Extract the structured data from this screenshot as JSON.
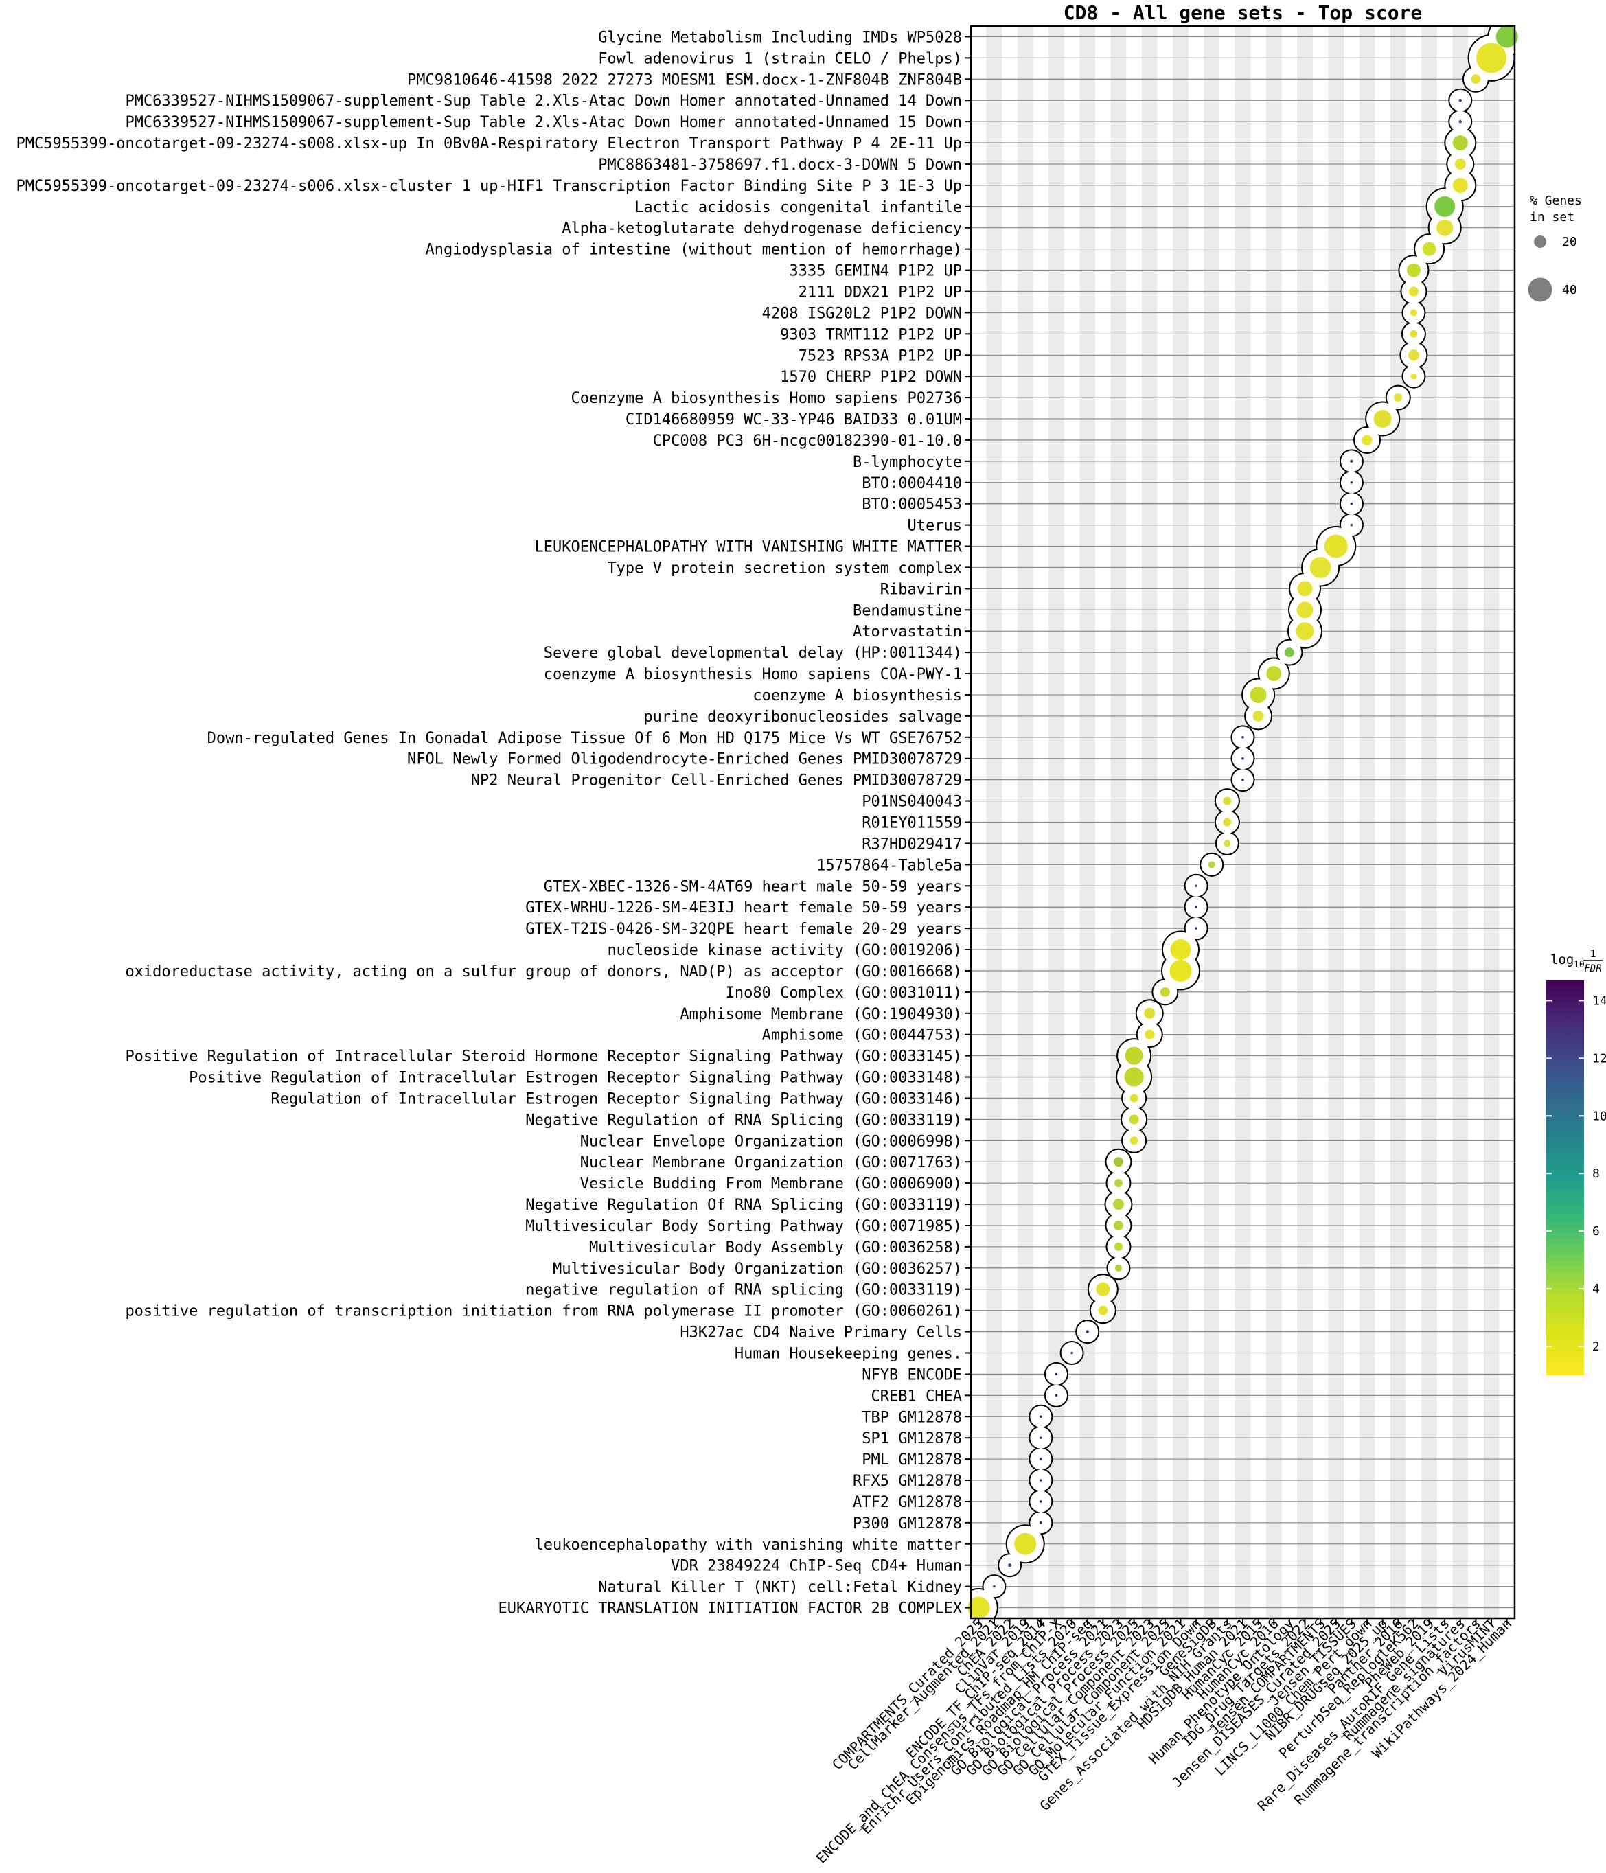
{
  "title": "CD8 - All gene sets - Top score",
  "legend": {
    "title_line1": "% Genes",
    "title_line2": "in set",
    "sizes": [
      20,
      40
    ],
    "circle_color": "#7f7f7f"
  },
  "colorbar": {
    "title_log": "log",
    "title_sub": "10",
    "frac_num": "1",
    "frac_den": "FDR",
    "ticks": [
      14,
      12,
      10,
      8,
      6,
      4,
      2
    ],
    "vmin": 1.0,
    "vmax": 14.7
  },
  "style_colors": {
    "stripe": "#ebebeb",
    "gridline": "#8f8f8f",
    "snake_fill": "#ffffff",
    "snake_stroke": "#000000"
  },
  "chart_data": {
    "type": "scatter",
    "x_axis": "gene set library",
    "y_axis": "gene set (top score per library)",
    "size_encoding": "% Genes in set",
    "color_encoding": "log10 1/FDR (viridis)",
    "x_categories": [
      "COMPARTMENTS_Curated_2025",
      "CellMarker_Augmented_2021",
      "ChEA_2022",
      "ClinVar_2019",
      "ENCODE_TF_ChIP-seq_2014",
      "ENCODE_and_ChEA_Consensus_TFs_from_ChIP-X",
      "Enrichr_Users_Contributed_Lists_2020",
      "Epigenomics_Roadmap_HM_ChIP-seq",
      "GO_Biological_Process_2021",
      "GO_Biological_Process_2023",
      "GO_Biological_Process_2025",
      "GO_Cellular_Component_2023",
      "GO_Cellular_Component_2025",
      "GO_Molecular_Function_2021",
      "GTEX_Tissue_Expression_Down",
      "GeneSigDB",
      "Genes_Associated_with_NIH_Grants",
      "HDSigDB_Human_2021",
      "HumanCyc_2015",
      "HumanCyc_2016",
      "Human_Phenotype_Ontology",
      "IDG_Drug_Targets_2022",
      "Jensen_COMPARTMENTS",
      "Jensen_DISEASES_Curated_2025",
      "Jensen_TISSUES",
      "LINCS_L1000_Chem_Pert_down",
      "NIBR_DRUGseq_2025_up",
      "Panther_2016",
      "PerturbSeq_ReplogleK562",
      "PheWeb_2019",
      "Rare_Diseases_AutoRIF_Gene_Lists",
      "Rummagene_signatures",
      "Rummagene_transcription_factors",
      "VirusMINT",
      "WikiPathways_2024_Human"
    ],
    "rows": [
      {
        "label": "Glycine Metabolism Including IMDs WP5028",
        "library": "WikiPathways_2024_Human",
        "col": 35,
        "pct_genes": 36,
        "log10_inv_fdr": 4.5,
        "r": 16,
        "color": "#82ca3e"
      },
      {
        "label": "Fowl adenovirus 1 (strain CELO / Phelps)",
        "library": "VirusMINT",
        "col": 34,
        "pct_genes": 50,
        "log10_inv_fdr": 1.5,
        "r": 22,
        "color": "#e8e42c"
      },
      {
        "label": "PMC9810646-41598 2022 27273 MOESM1 ESM.docx-1-ZNF804B ZNF804B",
        "library": "Rummagene_transcription_factors",
        "col": 33,
        "pct_genes": 16,
        "log10_inv_fdr": 1.8,
        "r": 7,
        "color": "#e3e233"
      },
      {
        "label": "PMC6339527-NIHMS1509067-supplement-Sup Table 2.Xls-Atac Down Homer annotated-Unnamed 14 Down",
        "library": "Rummagene_signatures",
        "col": 32,
        "pct_genes": 5,
        "log10_inv_fdr": 10,
        "r": 2.2,
        "color": "#2d4b8e"
      },
      {
        "label": "PMC6339527-NIHMS1509067-supplement-Sup Table 2.Xls-Atac Down Homer annotated-Unnamed 15 Down",
        "library": "Rummagene_signatures",
        "col": 32,
        "pct_genes": 5,
        "log10_inv_fdr": 10,
        "r": 2.2,
        "color": "#2d4b8e"
      },
      {
        "label": "PMC5955399-oncotarget-09-23274-s008.xlsx-up In 0Bv0A-Respiratory Electron Transport Pathway P 4 2E-11 Up",
        "library": "Rummagene_signatures",
        "col": 32,
        "pct_genes": 25,
        "log10_inv_fdr": 3.0,
        "r": 11,
        "color": "#b2d435"
      },
      {
        "label": "PMC8863481-3758697.f1.docx-3-DOWN 5 Down",
        "library": "Rummagene_signatures",
        "col": 32,
        "pct_genes": 18,
        "log10_inv_fdr": 1.8,
        "r": 8,
        "color": "#e6e332"
      },
      {
        "label": "PMC5955399-oncotarget-09-23274-s006.xlsx-cluster 1 up-HIF1 Transcription Factor Binding Site P 3 1E-3 Up",
        "library": "Rummagene_signatures",
        "col": 32,
        "pct_genes": 25,
        "log10_inv_fdr": 1.6,
        "r": 11,
        "color": "#e8e32e"
      },
      {
        "label": "Lactic acidosis congenital infantile",
        "library": "Rare_Diseases_AutoRIF_Gene_Lists",
        "col": 31,
        "pct_genes": 34,
        "log10_inv_fdr": 4.5,
        "r": 15,
        "color": "#7ec944"
      },
      {
        "label": "Alpha-ketoglutarate dehydrogenase deficiency",
        "library": "Rare_Diseases_AutoRIF_Gene_Lists",
        "col": 31,
        "pct_genes": 27,
        "log10_inv_fdr": 1.7,
        "r": 12,
        "color": "#e6e133"
      },
      {
        "label": "Angiodysplasia of intestine (without mention of hemorrhage)",
        "library": "PheWeb_2019",
        "col": 30,
        "pct_genes": 23,
        "log10_inv_fdr": 2.2,
        "r": 10,
        "color": "#d4de2e"
      },
      {
        "label": "3335 GEMIN4 P1P2 UP",
        "library": "PerturbSeq_ReplogleK562",
        "col": 29,
        "pct_genes": 23,
        "log10_inv_fdr": 2.6,
        "r": 10,
        "color": "#c6da30"
      },
      {
        "label": "2111 DDX21 P1P2 UP",
        "library": "PerturbSeq_ReplogleK562",
        "col": 29,
        "pct_genes": 16,
        "log10_inv_fdr": 1.7,
        "r": 7,
        "color": "#e6e232"
      },
      {
        "label": "4208 ISG20L2 P1P2 DOWN",
        "library": "PerturbSeq_ReplogleK562",
        "col": 29,
        "pct_genes": 11,
        "log10_inv_fdr": 1.6,
        "r": 5,
        "color": "#e8e430"
      },
      {
        "label": "9303 TRMT112 P1P2 UP",
        "library": "PerturbSeq_ReplogleK562",
        "col": 29,
        "pct_genes": 13,
        "log10_inv_fdr": 1.7,
        "r": 5.5,
        "color": "#e6e232"
      },
      {
        "label": "7523 RPS3A P1P2 UP",
        "library": "PerturbSeq_ReplogleK562",
        "col": 29,
        "pct_genes": 18,
        "log10_inv_fdr": 1.8,
        "r": 8,
        "color": "#e4e134"
      },
      {
        "label": "1570 CHERP P1P2 DOWN",
        "library": "PerturbSeq_ReplogleK562",
        "col": 29,
        "pct_genes": 10,
        "log10_inv_fdr": 1.5,
        "r": 4.5,
        "color": "#eae637"
      },
      {
        "label": "Coenzyme A biosynthesis Homo sapiens P02736",
        "library": "Panther_2016",
        "col": 28,
        "pct_genes": 14,
        "log10_inv_fdr": 1.7,
        "r": 6,
        "color": "#e6e233"
      },
      {
        "label": "CID146680959 WC-33-YP46 BAID33 0.01UM",
        "library": "NIBR_DRUGseq_2025_up",
        "col": 27,
        "pct_genes": 30,
        "log10_inv_fdr": 1.9,
        "r": 13,
        "color": "#e2e02f"
      },
      {
        "label": "CPC008 PC3 6H-ncgc00182390-01-10.0",
        "library": "LINCS_L1000_Chem_Pert_down",
        "col": 26,
        "pct_genes": 17,
        "log10_inv_fdr": 1.6,
        "r": 7.5,
        "color": "#e8e531"
      },
      {
        "label": "B-lymphocyte",
        "library": "Jensen_TISSUES",
        "col": 25,
        "pct_genes": 5,
        "log10_inv_fdr": 12,
        "r": 2.2,
        "color": "#542a84"
      },
      {
        "label": "BTO:0004410",
        "library": "Jensen_TISSUES",
        "col": 25,
        "pct_genes": 4,
        "log10_inv_fdr": 12,
        "r": 1.8,
        "color": "#542a84"
      },
      {
        "label": "BTO:0005453",
        "library": "Jensen_TISSUES",
        "col": 25,
        "pct_genes": 4,
        "log10_inv_fdr": 12,
        "r": 1.8,
        "color": "#542a84"
      },
      {
        "label": "Uterus",
        "library": "Jensen_TISSUES",
        "col": 25,
        "pct_genes": 4,
        "log10_inv_fdr": 12,
        "r": 1.8,
        "color": "#542a84"
      },
      {
        "label": "LEUKOENCEPHALOPATHY WITH VANISHING WHITE MATTER",
        "library": "Jensen_DISEASES_Curated_2025",
        "col": 24,
        "pct_genes": 39,
        "log10_inv_fdr": 1.8,
        "r": 17,
        "color": "#e5e22e"
      },
      {
        "label": "Type V protein secretion system complex",
        "library": "Jensen_COMPARTMENTS",
        "col": 23,
        "pct_genes": 35,
        "log10_inv_fdr": 1.6,
        "r": 15.5,
        "color": "#e6e430"
      },
      {
        "label": "Ribavirin",
        "library": "IDG_Drug_Targets_2022",
        "col": 22,
        "pct_genes": 25,
        "log10_inv_fdr": 1.8,
        "r": 11,
        "color": "#e5e231"
      },
      {
        "label": "Bendamustine",
        "library": "IDG_Drug_Targets_2022",
        "col": 22,
        "pct_genes": 27,
        "log10_inv_fdr": 1.8,
        "r": 12,
        "color": "#e5e231"
      },
      {
        "label": "Atorvastatin",
        "library": "IDG_Drug_Targets_2022",
        "col": 22,
        "pct_genes": 30,
        "log10_inv_fdr": 1.8,
        "r": 13,
        "color": "#e5e231"
      },
      {
        "label": "Severe global developmental delay (HP:0011344)",
        "library": "Human_Phenotype_Ontology",
        "col": 21,
        "pct_genes": 16,
        "log10_inv_fdr": 4.6,
        "r": 7,
        "color": "#7cc943"
      },
      {
        "label": "coenzyme A biosynthesis Homo sapiens COA-PWY-1",
        "library": "HumanCyc_2016",
        "col": 20,
        "pct_genes": 25,
        "log10_inv_fdr": 2.6,
        "r": 11,
        "color": "#c6da2e"
      },
      {
        "label": "coenzyme A biosynthesis",
        "library": "HumanCyc_2015",
        "col": 19,
        "pct_genes": 27,
        "log10_inv_fdr": 2.5,
        "r": 12,
        "color": "#c9dc2c"
      },
      {
        "label": "purine deoxyribonucleosides salvage",
        "library": "HumanCyc_2015",
        "col": 19,
        "pct_genes": 18,
        "log10_inv_fdr": 1.9,
        "r": 8,
        "color": "#e2e135"
      },
      {
        "label": "Down-regulated Genes In Gonadal Adipose Tissue Of 6 Mon HD Q175 Mice Vs WT GSE76752",
        "library": "HDSigDB_Human_2021",
        "col": 18,
        "pct_genes": 4,
        "log10_inv_fdr": 12.5,
        "r": 1.8,
        "color": "#4b2586"
      },
      {
        "label": "NFOL Newly Formed Oligodendrocyte-Enriched Genes PMID30078729",
        "library": "HDSigDB_Human_2021",
        "col": 18,
        "pct_genes": 4,
        "log10_inv_fdr": 12.5,
        "r": 1.8,
        "color": "#4b2586"
      },
      {
        "label": "NP2 Neural Progenitor Cell-Enriched Genes PMID30078729",
        "library": "HDSigDB_Human_2021",
        "col": 18,
        "pct_genes": 4,
        "log10_inv_fdr": 12.5,
        "r": 1.8,
        "color": "#4b2586"
      },
      {
        "label": "P01NS040043",
        "library": "Genes_Associated_with_NIH_Grants",
        "col": 17,
        "pct_genes": 14,
        "log10_inv_fdr": 2.0,
        "r": 6,
        "color": "#e0df31"
      },
      {
        "label": "R01EY011559",
        "library": "Genes_Associated_with_NIH_Grants",
        "col": 17,
        "pct_genes": 14,
        "log10_inv_fdr": 2.0,
        "r": 6,
        "color": "#e0df31"
      },
      {
        "label": "R37HD029417",
        "library": "Genes_Associated_with_NIH_Grants",
        "col": 17,
        "pct_genes": 11,
        "log10_inv_fdr": 2.0,
        "r": 5,
        "color": "#e0df31"
      },
      {
        "label": "15757864-Table5a",
        "library": "GeneSigDB",
        "col": 16,
        "pct_genes": 11,
        "log10_inv_fdr": 3.1,
        "r": 5,
        "color": "#bcd637"
      },
      {
        "label": "GTEX-XBEC-1326-SM-4AT69 heart male 50-59 years",
        "library": "GTEX_Tissue_Expression_Down",
        "col": 15,
        "pct_genes": 4,
        "log10_inv_fdr": 12,
        "r": 1.8,
        "color": "#542a84"
      },
      {
        "label": "GTEX-WRHU-1226-SM-4E3IJ heart female 50-59 years",
        "library": "GTEX_Tissue_Expression_Down",
        "col": 15,
        "pct_genes": 4,
        "log10_inv_fdr": 12,
        "r": 1.8,
        "color": "#542a84"
      },
      {
        "label": "GTEX-T2IS-0426-SM-32QPE heart female 20-29 years",
        "library": "GTEX_Tissue_Expression_Down",
        "col": 15,
        "pct_genes": 4,
        "log10_inv_fdr": 12,
        "r": 1.8,
        "color": "#542a84"
      },
      {
        "label": "nucleoside kinase activity (GO:0019206)",
        "library": "GO_Molecular_Function_2021",
        "col": 14,
        "pct_genes": 34,
        "log10_inv_fdr": 1.4,
        "r": 15,
        "color": "#e9e522"
      },
      {
        "label": "oxidoreductase activity, acting on a sulfur group of donors, NAD(P) as acceptor (GO:0016668)",
        "library": "GO_Molecular_Function_2021",
        "col": 14,
        "pct_genes": 36,
        "log10_inv_fdr": 1.4,
        "r": 16,
        "color": "#e9e522"
      },
      {
        "label": "Ino80 Complex (GO:0031011)",
        "library": "GO_Cellular_Component_2025",
        "col": 13,
        "pct_genes": 16,
        "log10_inv_fdr": 2.5,
        "r": 7,
        "color": "#c9d930"
      },
      {
        "label": "Amphisome Membrane (GO:1904930)",
        "library": "GO_Cellular_Component_2023",
        "col": 12,
        "pct_genes": 18,
        "log10_inv_fdr": 2.1,
        "r": 8,
        "color": "#dfe033"
      },
      {
        "label": "Amphisome (GO:0044753)",
        "library": "GO_Cellular_Component_2023",
        "col": 12,
        "pct_genes": 16,
        "log10_inv_fdr": 1.6,
        "r": 7,
        "color": "#e7e42c"
      },
      {
        "label": "Positive Regulation of Intracellular Steroid Hormone Receptor Signaling Pathway (GO:0033145)",
        "library": "GO_Biological_Process_2025",
        "col": 11,
        "pct_genes": 30,
        "log10_inv_fdr": 2.7,
        "r": 13,
        "color": "#c3d62b"
      },
      {
        "label": "Positive Regulation of Intracellular Estrogen Receptor Signaling Pathway (GO:0033148)",
        "library": "GO_Biological_Process_2025",
        "col": 11,
        "pct_genes": 32,
        "log10_inv_fdr": 2.7,
        "r": 14,
        "color": "#c3d62b"
      },
      {
        "label": "Regulation of Intracellular Estrogen Receptor Signaling Pathway (GO:0033146)",
        "library": "GO_Biological_Process_2025",
        "col": 11,
        "pct_genes": 14,
        "log10_inv_fdr": 2.1,
        "r": 6,
        "color": "#dfe12e"
      },
      {
        "label": "Negative Regulation of RNA Splicing (GO:0033119)",
        "library": "GO_Biological_Process_2025",
        "col": 11,
        "pct_genes": 16,
        "log10_inv_fdr": 2.4,
        "r": 7,
        "color": "#cdda2e"
      },
      {
        "label": "Nuclear Envelope Organization (GO:0006998)",
        "library": "GO_Biological_Process_2025",
        "col": 11,
        "pct_genes": 14,
        "log10_inv_fdr": 1.7,
        "r": 6,
        "color": "#e4e232"
      },
      {
        "label": "Nuclear Membrane Organization (GO:0071763)",
        "library": "GO_Biological_Process_2023",
        "col": 10,
        "pct_genes": 16,
        "log10_inv_fdr": 3.5,
        "r": 7,
        "color": "#a0c838"
      },
      {
        "label": "Vesicle Budding From Membrane (GO:0006900)",
        "library": "GO_Biological_Process_2023",
        "col": 10,
        "pct_genes": 14,
        "log10_inv_fdr": 3.0,
        "r": 6,
        "color": "#b9d63a"
      },
      {
        "label": "Negative Regulation Of RNA Splicing (GO:0033119)",
        "library": "GO_Biological_Process_2023",
        "col": 10,
        "pct_genes": 18,
        "log10_inv_fdr": 3.0,
        "r": 8,
        "color": "#b9d63a"
      },
      {
        "label": "Multivesicular Body Sorting Pathway (GO:0071985)",
        "library": "GO_Biological_Process_2023",
        "col": 10,
        "pct_genes": 16,
        "log10_inv_fdr": 3.0,
        "r": 7,
        "color": "#b9d63a"
      },
      {
        "label": "Multivesicular Body Assembly (GO:0036258)",
        "library": "GO_Biological_Process_2023",
        "col": 10,
        "pct_genes": 14,
        "log10_inv_fdr": 2.7,
        "r": 6,
        "color": "#c3d837"
      },
      {
        "label": "Multivesicular Body Organization (GO:0036257)",
        "library": "GO_Biological_Process_2023",
        "col": 10,
        "pct_genes": 11,
        "log10_inv_fdr": 3.1,
        "r": 5,
        "color": "#b4d437"
      },
      {
        "label": "negative regulation of RNA splicing (GO:0033119)",
        "library": "GO_Biological_Process_2021",
        "col": 9,
        "pct_genes": 23,
        "log10_inv_fdr": 1.7,
        "r": 10,
        "color": "#e4e22f"
      },
      {
        "label": "positive regulation of transcription initiation from RNA polymerase II promoter (GO:0060261)",
        "library": "GO_Biological_Process_2021",
        "col": 9,
        "pct_genes": 16,
        "log10_inv_fdr": 1.7,
        "r": 7,
        "color": "#e4e22f"
      },
      {
        "label": "H3K27ac CD4 Naive Primary Cells",
        "library": "Epigenomics_Roadmap_HM_ChIP-seq",
        "col": 8,
        "pct_genes": 5,
        "log10_inv_fdr": 12.5,
        "r": 2.2,
        "color": "#4b2586"
      },
      {
        "label": "Human Housekeeping genes.",
        "library": "Enrichr_Users_Contributed_Lists_2020",
        "col": 7,
        "pct_genes": 4,
        "log10_inv_fdr": 12.5,
        "r": 1.8,
        "color": "#4b2586"
      },
      {
        "label": "NFYB ENCODE",
        "library": "ENCODE_and_ChEA_Consensus_TFs_from_ChIP-X",
        "col": 6,
        "pct_genes": 4,
        "log10_inv_fdr": 12.5,
        "r": 1.8,
        "color": "#4b2586"
      },
      {
        "label": "CREB1 CHEA",
        "library": "ENCODE_and_ChEA_Consensus_TFs_from_ChIP-X",
        "col": 6,
        "pct_genes": 4,
        "log10_inv_fdr": 12.5,
        "r": 1.8,
        "color": "#4b2586"
      },
      {
        "label": "TBP GM12878",
        "library": "ENCODE_TF_ChIP-seq_2014",
        "col": 5,
        "pct_genes": 4,
        "log10_inv_fdr": 13,
        "r": 1.8,
        "color": "#3b2a7e"
      },
      {
        "label": "SP1 GM12878",
        "library": "ENCODE_TF_ChIP-seq_2014",
        "col": 5,
        "pct_genes": 4,
        "log10_inv_fdr": 13,
        "r": 1.8,
        "color": "#3b2a7e"
      },
      {
        "label": "PML GM12878",
        "library": "ENCODE_TF_ChIP-seq_2014",
        "col": 5,
        "pct_genes": 4,
        "log10_inv_fdr": 13,
        "r": 1.8,
        "color": "#3b2a7e"
      },
      {
        "label": "RFX5 GM12878",
        "library": "ENCODE_TF_ChIP-seq_2014",
        "col": 5,
        "pct_genes": 4,
        "log10_inv_fdr": 13,
        "r": 1.8,
        "color": "#3b2a7e"
      },
      {
        "label": "ATF2 GM12878",
        "library": "ENCODE_TF_ChIP-seq_2014",
        "col": 5,
        "pct_genes": 4,
        "log10_inv_fdr": 13,
        "r": 1.8,
        "color": "#3b2a7e"
      },
      {
        "label": "P300 GM12878",
        "library": "ENCODE_TF_ChIP-seq_2014",
        "col": 5,
        "pct_genes": 4,
        "log10_inv_fdr": 13,
        "r": 1.8,
        "color": "#3b2a7e"
      },
      {
        "label": "leukoencephalopathy with vanishing white matter",
        "library": "ClinVar_2019",
        "col": 4,
        "pct_genes": 36,
        "log10_inv_fdr": 1.7,
        "r": 16,
        "color": "#e4e22a"
      },
      {
        "label": "VDR 23849224 ChIP-Seq CD4+ Human",
        "library": "ChEA_2022",
        "col": 3,
        "pct_genes": 6,
        "log10_inv_fdr": 10,
        "r": 2.5,
        "color": "#31518c"
      },
      {
        "label": "Natural Killer T (NKT) cell:Fetal Kidney",
        "library": "CellMarker_Augmented_2021",
        "col": 2,
        "pct_genes": 4,
        "log10_inv_fdr": 12,
        "r": 1.8,
        "color": "#542a84"
      },
      {
        "label": "EUKARYOTIC TRANSLATION INITIATION FACTOR 2B COMPLEX",
        "library": "COMPARTMENTS_Curated_2025",
        "col": 1,
        "pct_genes": 36,
        "log10_inv_fdr": 1.6,
        "r": 16,
        "color": "#e8e428"
      }
    ]
  }
}
